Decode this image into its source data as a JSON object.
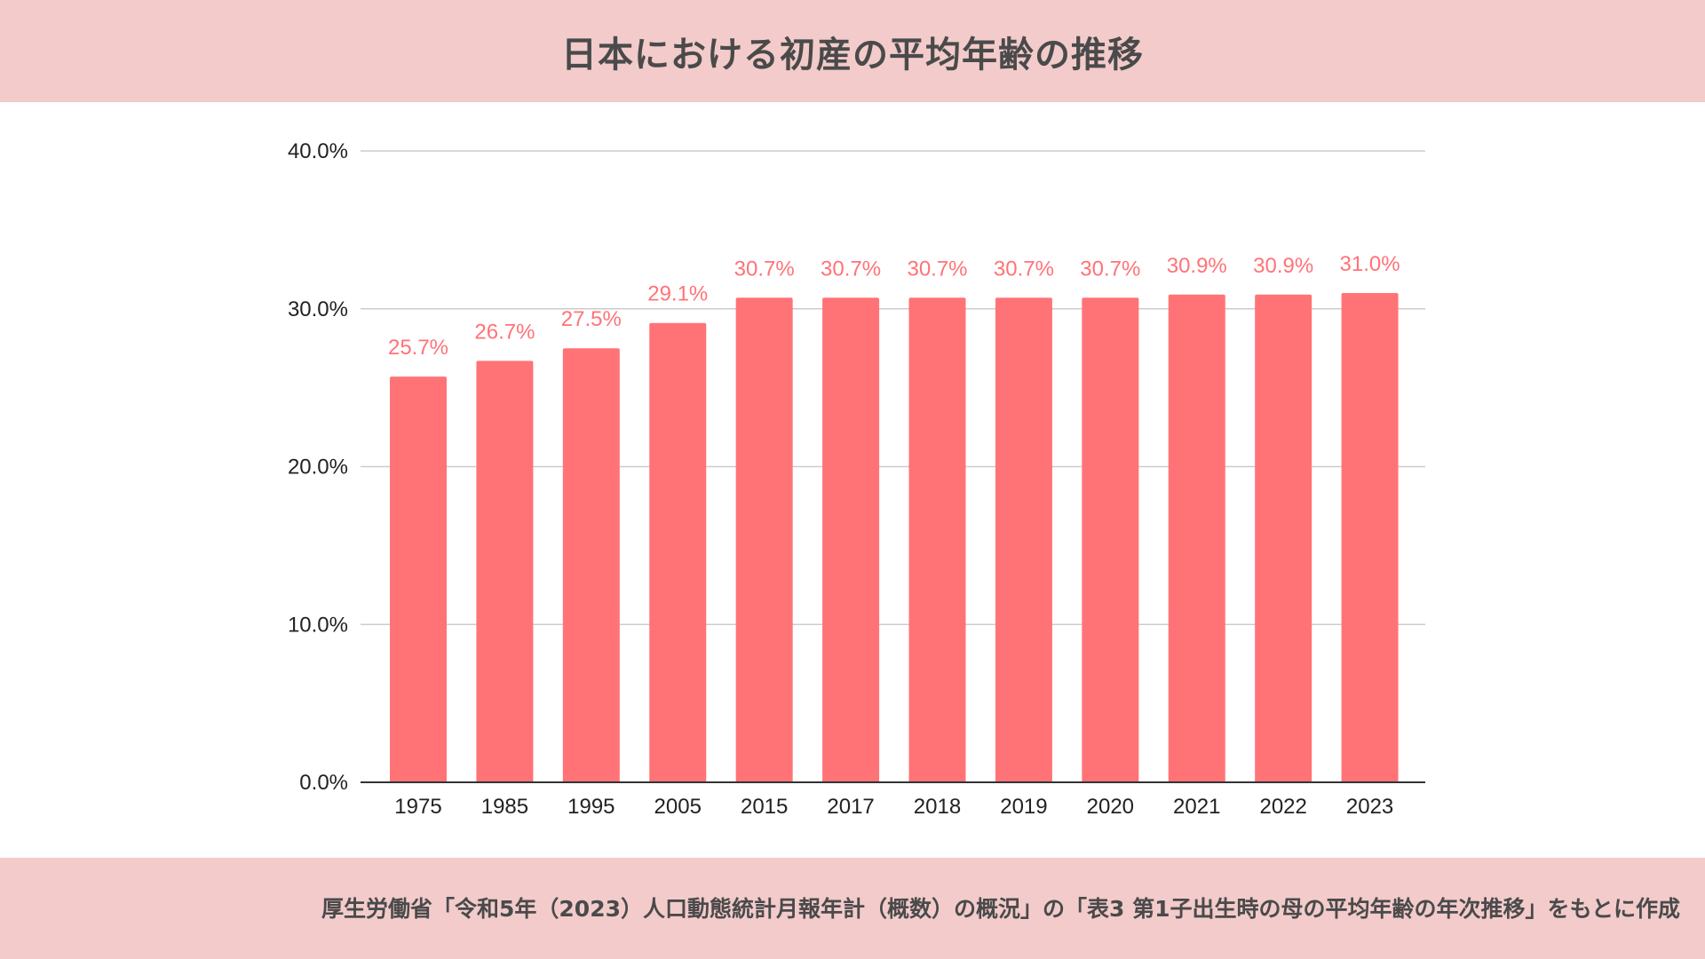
{
  "header": {
    "title": "日本における初産の平均年齢の推移"
  },
  "footer": {
    "source": "厚生労働省「令和5年（2023）人口動態統計月報年計（概数）の概況」の「表3 第1子出生時の母の平均年齢の年次推移」をもとに作成"
  },
  "colors": {
    "band": "#f3cbcb",
    "bar": "#ff7377",
    "data_label": "#ff7377",
    "grid": "#cccccc",
    "axis": "#333333",
    "text": "#222222"
  },
  "chart_data": {
    "type": "bar",
    "title": "日本における初産の平均年齢の推移",
    "xlabel": "",
    "ylabel": "",
    "categories": [
      "1975",
      "1985",
      "1995",
      "2005",
      "2015",
      "2017",
      "2018",
      "2019",
      "2020",
      "2021",
      "2022",
      "2023"
    ],
    "values": [
      25.7,
      26.7,
      27.5,
      29.1,
      30.7,
      30.7,
      30.7,
      30.7,
      30.7,
      30.9,
      30.9,
      31.0
    ],
    "value_labels": [
      "25.7%",
      "26.7%",
      "27.5%",
      "29.1%",
      "30.7%",
      "30.7%",
      "30.7%",
      "30.7%",
      "30.7%",
      "30.9%",
      "30.9%",
      "31.0%"
    ],
    "ylim": [
      0,
      40
    ],
    "yticks": [
      0,
      10,
      20,
      30,
      40
    ],
    "ytick_labels": [
      "0.0%",
      "10.0%",
      "20.0%",
      "30.0%",
      "40.0%"
    ],
    "grid": true,
    "legend": "none"
  }
}
